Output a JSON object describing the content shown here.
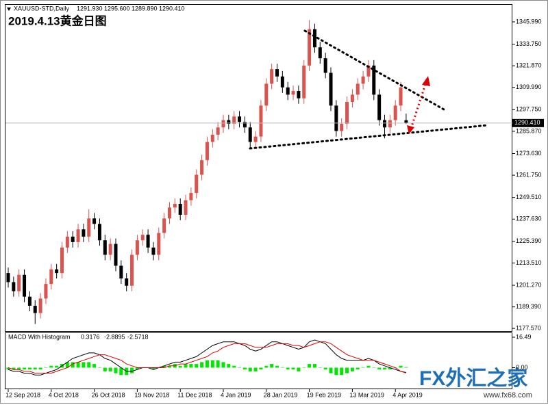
{
  "chart_data": [
    {
      "type": "candlestick",
      "title": "2019.4.13黄金日图",
      "symbol": "XAUUSD-STD,Daily",
      "header_values": [
        {
          "value": 1291.93,
          "label": "1291.930"
        },
        {
          "value": 1295.6,
          "label": "1295.600"
        },
        {
          "value": 1289.89,
          "label": "1289.890"
        },
        {
          "value": 1290.41,
          "label": "1290.410"
        }
      ],
      "last_price": {
        "value": 1290.41,
        "label": "1290.410"
      },
      "categories": [
        "12 Sep 2018",
        null,
        null,
        null,
        null,
        null,
        null,
        null,
        "4 Oct 2018",
        null,
        null,
        null,
        null,
        null,
        null,
        null,
        "26 Oct 2018",
        null,
        null,
        null,
        null,
        null,
        null,
        null,
        "19 Nov 2018",
        null,
        null,
        null,
        null,
        null,
        null,
        null,
        "11 Dec 2018",
        null,
        null,
        null,
        null,
        null,
        null,
        null,
        "4 Jan 2019",
        null,
        null,
        null,
        null,
        null,
        null,
        null,
        "28 Jan 2019",
        null,
        null,
        null,
        null,
        null,
        null,
        null,
        "19 Feb 2019",
        null,
        null,
        null,
        null,
        null,
        null,
        null,
        "13 Mar 2019",
        null,
        null,
        null,
        null,
        null,
        null,
        null,
        "4 Apr 2019",
        null,
        null
      ],
      "open": [
        1208,
        1203,
        1198,
        1207,
        1195,
        1190,
        1186,
        1194,
        1202,
        1210,
        1208,
        1222,
        1228,
        1225,
        1232,
        1228,
        1238,
        1235,
        1226,
        1218,
        1224,
        1212,
        1205,
        1201,
        1218,
        1226,
        1229,
        1222,
        1218,
        1230,
        1238,
        1244,
        1246,
        1240,
        1248,
        1252,
        1262,
        1270,
        1280,
        1284,
        1288,
        1292,
        1290,
        1294,
        1291,
        1288,
        1280,
        1283,
        1300,
        1312,
        1320,
        1316,
        1310,
        1306,
        1308,
        1304,
        1322,
        1342,
        1332,
        1326,
        1318,
        1300,
        1286,
        1290,
        1302,
        1306,
        1312,
        1316,
        1322,
        1306,
        1292,
        1288,
        1292,
        1300,
        1291.93
      ],
      "high": [
        1211,
        1206,
        1210,
        1210,
        1198,
        1193,
        1197,
        1205,
        1213,
        1213,
        1225,
        1231,
        1231,
        1235,
        1235,
        1243,
        1241,
        1238,
        1229,
        1227,
        1227,
        1215,
        1208,
        1221,
        1229,
        1232,
        1232,
        1225,
        1233,
        1241,
        1247,
        1249,
        1249,
        1251,
        1255,
        1265,
        1273,
        1283,
        1287,
        1291,
        1295,
        1295,
        1297,
        1297,
        1294,
        1291,
        1286,
        1303,
        1315,
        1323,
        1323,
        1319,
        1313,
        1311,
        1311,
        1325,
        1347,
        1345,
        1335,
        1329,
        1321,
        1303,
        1293,
        1305,
        1309,
        1315,
        1319,
        1325,
        1325,
        1309,
        1295,
        1295,
        1303,
        1313,
        1295.6
      ],
      "low": [
        1200,
        1195,
        1195,
        1192,
        1187,
        1180,
        1183,
        1191,
        1199,
        1205,
        1205,
        1219,
        1222,
        1222,
        1225,
        1225,
        1232,
        1223,
        1215,
        1215,
        1209,
        1202,
        1198,
        1198,
        1215,
        1223,
        1219,
        1215,
        1215,
        1227,
        1235,
        1241,
        1237,
        1237,
        1245,
        1249,
        1259,
        1267,
        1277,
        1281,
        1285,
        1287,
        1287,
        1288,
        1285,
        1277,
        1277,
        1280,
        1297,
        1309,
        1313,
        1307,
        1303,
        1303,
        1301,
        1301,
        1319,
        1329,
        1323,
        1315,
        1297,
        1283,
        1283,
        1287,
        1299,
        1303,
        1309,
        1313,
        1303,
        1289,
        1282,
        1285,
        1289,
        1297,
        1289.89
      ],
      "close": [
        1203,
        1198,
        1207,
        1195,
        1190,
        1186,
        1194,
        1202,
        1210,
        1208,
        1222,
        1228,
        1225,
        1232,
        1228,
        1238,
        1235,
        1226,
        1218,
        1224,
        1212,
        1205,
        1201,
        1218,
        1226,
        1229,
        1222,
        1218,
        1230,
        1238,
        1244,
        1246,
        1240,
        1248,
        1252,
        1262,
        1270,
        1280,
        1284,
        1288,
        1292,
        1290,
        1294,
        1291,
        1288,
        1280,
        1283,
        1300,
        1312,
        1320,
        1316,
        1310,
        1306,
        1308,
        1304,
        1322,
        1342,
        1332,
        1326,
        1318,
        1300,
        1286,
        1290,
        1302,
        1306,
        1312,
        1316,
        1322,
        1306,
        1292,
        1288,
        1292,
        1300,
        1310,
        1290.41
      ],
      "up_color": "#d9534f",
      "down_color": "#000000",
      "ylim": [
        1176.1,
        1355.0
      ],
      "yticks": [
        {
          "value": 1345.99,
          "label": "1345.990"
        },
        {
          "value": 1333.75,
          "label": "1333.750"
        },
        {
          "value": 1321.87,
          "label": "1321.870"
        },
        {
          "value": 1309.99,
          "label": "1309.990"
        },
        {
          "value": 1297.75,
          "label": "1297.750"
        },
        {
          "value": 1285.87,
          "label": "1285.870"
        },
        {
          "value": 1273.63,
          "label": "1273.630"
        },
        {
          "value": 1261.75,
          "label": "1261.750"
        },
        {
          "value": 1249.51,
          "label": "1249.510"
        },
        {
          "value": 1237.63,
          "label": "1237.630"
        },
        {
          "value": 1225.39,
          "label": "1225.390"
        },
        {
          "value": 1213.51,
          "label": "1213.510"
        },
        {
          "value": 1201.27,
          "label": "1201.270"
        },
        {
          "value": 1189.39,
          "label": "1189.390"
        },
        {
          "value": 1177.57,
          "label": "1177.570"
        }
      ]
    },
    {
      "type": "macd",
      "title": "MACD With Histogram",
      "header_values": [
        0.3176,
        -2.8895,
        -2.5718
      ],
      "series": [
        {
          "style": "histogram",
          "color": "#00e600",
          "values": [
            -1,
            -1,
            -1,
            -1,
            -1,
            -1,
            -1,
            0,
            1,
            1,
            2,
            3,
            3,
            3,
            3,
            3,
            2,
            0,
            -2,
            -2,
            -3,
            -4,
            -4,
            -3,
            -1,
            0,
            0,
            -1,
            0,
            1,
            1,
            2,
            1,
            2,
            2,
            2,
            3,
            4,
            4,
            4,
            3,
            2,
            1,
            0,
            -1,
            -2,
            -2,
            -1,
            1,
            2,
            1,
            0,
            -1,
            -1,
            -2,
            0,
            2,
            2,
            0,
            -1,
            -3,
            -4,
            -4,
            -3,
            -2,
            -1,
            0,
            1,
            0,
            -1,
            -1,
            -1,
            0,
            1,
            0.3176
          ]
        },
        {
          "style": "line",
          "color": "#000000",
          "values": [
            -1,
            -2,
            -2,
            -3,
            -3,
            -4,
            -4,
            -3,
            -2,
            -1,
            1,
            3,
            5,
            6,
            7,
            8,
            8,
            7,
            5,
            4,
            2,
            0,
            -2,
            -2,
            -1,
            0,
            0,
            -1,
            0,
            1,
            2,
            3,
            3,
            4,
            5,
            6,
            8,
            10,
            12,
            13,
            14,
            14,
            14,
            13,
            12,
            10,
            9,
            10,
            12,
            14,
            14,
            13,
            12,
            11,
            10,
            11,
            14,
            15,
            14,
            13,
            10,
            7,
            5,
            4,
            4,
            4,
            4,
            5,
            4,
            2,
            1,
            0,
            -1,
            -2,
            -2.5718
          ]
        },
        {
          "style": "line",
          "color": "#e00000",
          "values": [
            0,
            -1,
            -1,
            -2,
            -2,
            -3,
            -3,
            -3,
            -3,
            -2,
            -1,
            0,
            2,
            3,
            4,
            5,
            6,
            7,
            7,
            6,
            5,
            4,
            2,
            1,
            0,
            0,
            0,
            0,
            0,
            0,
            1,
            1,
            2,
            2,
            3,
            4,
            5,
            6,
            8,
            9,
            11,
            12,
            13,
            13,
            13,
            12,
            11,
            11,
            11,
            12,
            13,
            13,
            13,
            12,
            12,
            11,
            12,
            13,
            14,
            14,
            13,
            11,
            9,
            7,
            6,
            5,
            4,
            4,
            4,
            3,
            2,
            1,
            0,
            -2,
            -2.8895
          ]
        }
      ],
      "ylim": [
        -11.3,
        18.7
      ],
      "yticks": [
        16.49,
        {
          "value": 0,
          "label": "0.00"
        }
      ]
    }
  ],
  "watermark": {
    "brand": "FX外汇之家",
    "url": "www.fx68.com"
  }
}
